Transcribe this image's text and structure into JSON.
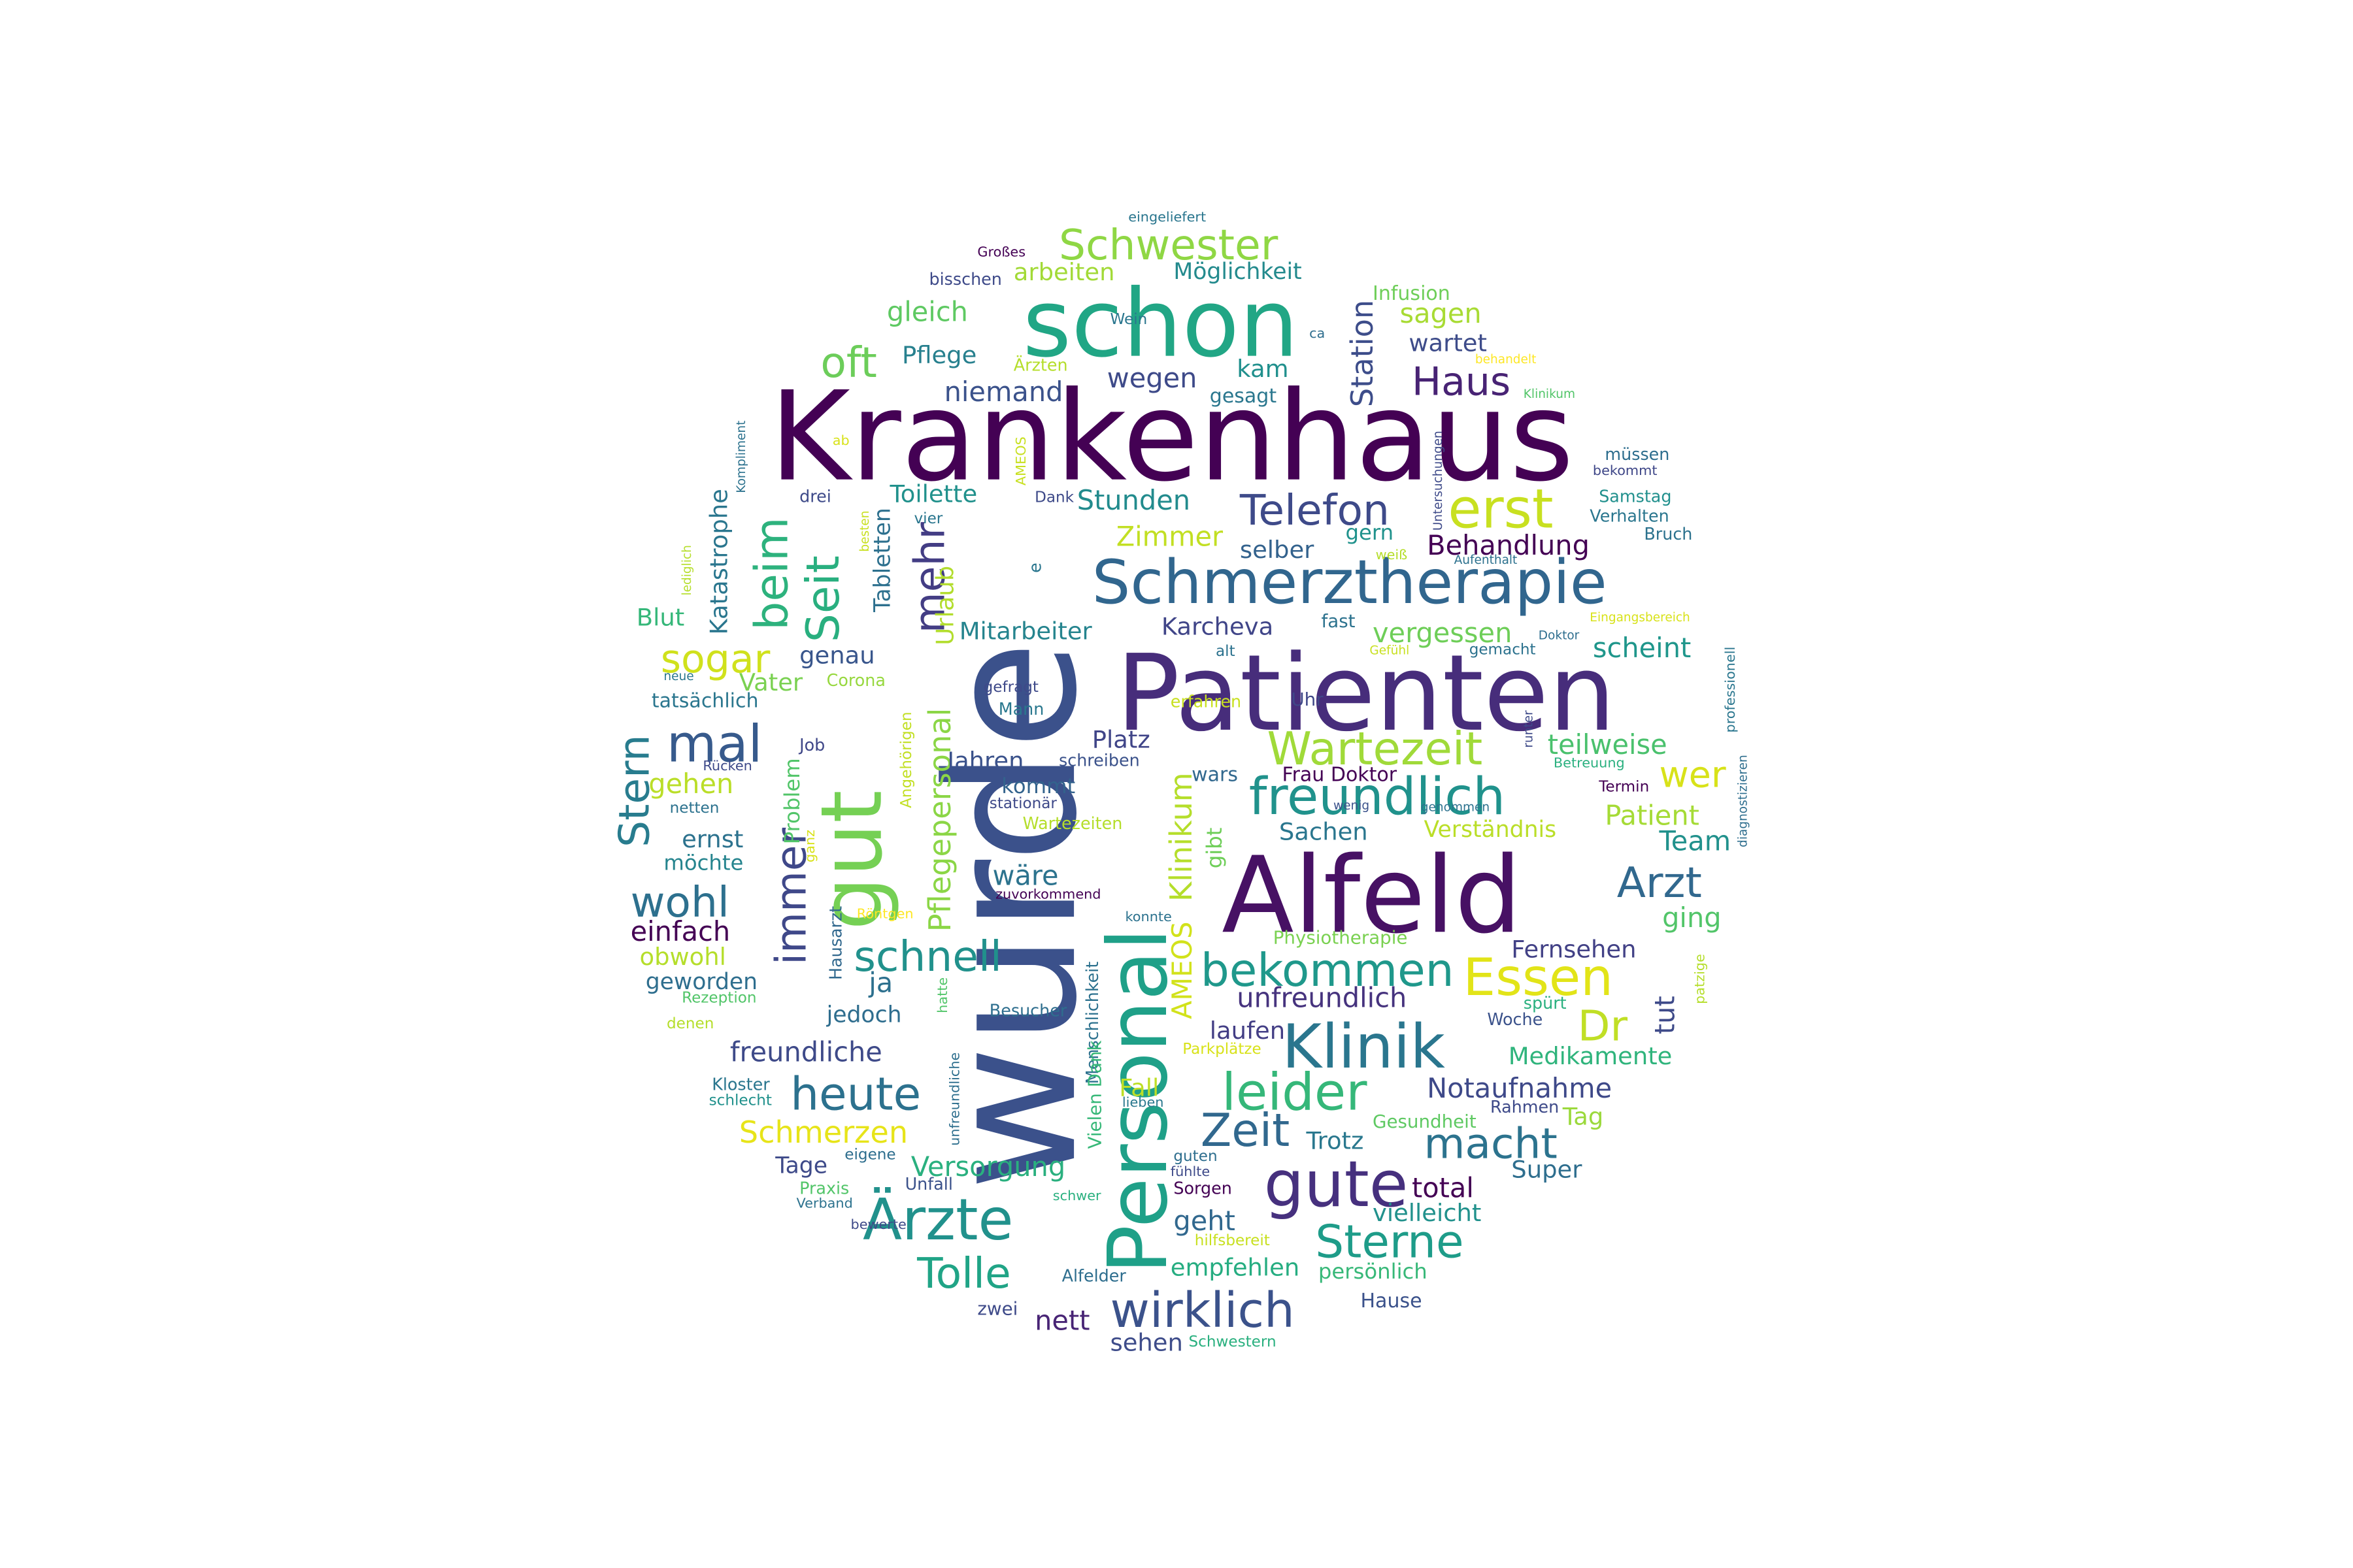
{
  "words": [
    {
      "text": "Krankenhaus",
      "color": "#440154"
    },
    {
      "text": "wurde",
      "color": "#3b518b"
    },
    {
      "text": "Patienten",
      "color": "#472d7b"
    },
    {
      "text": "Alfeld",
      "color": "#471164"
    },
    {
      "text": "schon",
      "color": "#21a685"
    },
    {
      "text": "Personal",
      "color": "#1fa088"
    },
    {
      "text": "gut",
      "color": "#75d054"
    },
    {
      "text": "Schmerztherapie",
      "color": "#31668e"
    },
    {
      "text": "Klinik",
      "color": "#2a768e"
    },
    {
      "text": "gute",
      "color": "#46307e"
    },
    {
      "text": "Ärzte",
      "color": "#21918c"
    },
    {
      "text": "Telefon",
      "color": "#3e4a89"
    },
    {
      "text": "erst",
      "color": "#c8e020"
    },
    {
      "text": "Schwester",
      "color": "#8fd744"
    },
    {
      "text": "Essen",
      "color": "#e2e418"
    },
    {
      "text": "freundlich",
      "color": "#20928c"
    },
    {
      "text": "bekommen",
      "color": "#1f988b"
    },
    {
      "text": "leider",
      "color": "#35b779"
    },
    {
      "text": "mal",
      "color": "#375a8c"
    },
    {
      "text": "Wartezeit",
      "color": "#a0da39"
    },
    {
      "text": "Haus",
      "color": "#482374"
    },
    {
      "text": "wirklich",
      "color": "#3b528b"
    },
    {
      "text": "Sterne",
      "color": "#1e9c89"
    },
    {
      "text": "heute",
      "color": "#2c718e"
    },
    {
      "text": "schnell",
      "color": "#21918c"
    },
    {
      "text": "immer",
      "color": "#3f4889"
    },
    {
      "text": "Seit",
      "color": "#29af7f"
    },
    {
      "text": "beim",
      "color": "#2db27d"
    },
    {
      "text": "mehr",
      "color": "#433d84"
    },
    {
      "text": "oft",
      "color": "#6ccd5a"
    },
    {
      "text": "Stern",
      "color": "#287c8e"
    },
    {
      "text": "sogar",
      "color": "#d0e11c"
    },
    {
      "text": "wohl",
      "color": "#2d708e"
    },
    {
      "text": "Zeit",
      "color": "#31688e"
    },
    {
      "text": "macht",
      "color": "#2c738e"
    },
    {
      "text": "Arzt",
      "color": "#31688e"
    },
    {
      "text": "Dr",
      "color": "#c0df25"
    },
    {
      "text": "Tolle",
      "color": "#20a486"
    },
    {
      "text": "Station",
      "color": "#3d4d8a"
    },
    {
      "text": "Pflegepersonal",
      "color": "#8bd646"
    },
    {
      "text": "Klinikum",
      "color": "#b5de2b"
    },
    {
      "text": "AMEOS",
      "color": "#d2e21b"
    },
    {
      "text": "Stunden",
      "color": "#228b8d"
    },
    {
      "text": "Behandlung",
      "color": "#440154"
    },
    {
      "text": "Notaufnahme",
      "color": "#3e4989"
    },
    {
      "text": "Schmerzen",
      "color": "#e7e419"
    },
    {
      "text": "Versorgung",
      "color": "#2ab07f"
    },
    {
      "text": "Mitarbeiter",
      "color": "#25848e"
    },
    {
      "text": "Karcheva",
      "color": "#404588"
    },
    {
      "text": "vergessen",
      "color": "#6ece58"
    },
    {
      "text": "scheint",
      "color": "#1f968b"
    },
    {
      "text": "teilweise",
      "color": "#4ac16d"
    },
    {
      "text": "wer",
      "color": "#d8e219"
    },
    {
      "text": "Patient",
      "color": "#a5db36"
    },
    {
      "text": "Team",
      "color": "#21918c"
    },
    {
      "text": "ging",
      "color": "#52c569"
    },
    {
      "text": "Fernsehen",
      "color": "#424186"
    },
    {
      "text": "tut",
      "color": "#3e4a89"
    },
    {
      "text": "Medikamente",
      "color": "#2fb47c"
    },
    {
      "text": "Tag",
      "color": "#9bd93c"
    },
    {
      "text": "Super",
      "color": "#2e6e8e"
    },
    {
      "text": "total",
      "color": "#440154"
    },
    {
      "text": "vielleicht",
      "color": "#21918c"
    },
    {
      "text": "persönlich",
      "color": "#37b878"
    },
    {
      "text": "empfehlen",
      "color": "#26ad81"
    },
    {
      "text": "geht",
      "color": "#31688e"
    },
    {
      "text": "nett",
      "color": "#482475"
    },
    {
      "text": "sehen",
      "color": "#3e4c8a"
    },
    {
      "text": "Hause",
      "color": "#3b528b"
    },
    {
      "text": "Trotz",
      "color": "#2a788e"
    },
    {
      "text": "Gesundheit",
      "color": "#5ec962"
    },
    {
      "text": "unfreundlich",
      "color": "#46337e"
    },
    {
      "text": "laufen",
      "color": "#433e85"
    },
    {
      "text": "Fall",
      "color": "#bddf26"
    },
    {
      "text": "Sachen",
      "color": "#2a768e"
    },
    {
      "text": "Verständnis",
      "color": "#bade28"
    },
    {
      "text": "gibt",
      "color": "#6ece58"
    },
    {
      "text": "wars",
      "color": "#31688e"
    },
    {
      "text": "Frau Doktor",
      "color": "#440154"
    },
    {
      "text": "Uhr",
      "color": "#3f4788"
    },
    {
      "text": "fast",
      "color": "#2c728e"
    },
    {
      "text": "gern",
      "color": "#20928c"
    },
    {
      "text": "selber",
      "color": "#33628d"
    },
    {
      "text": "Zimmer",
      "color": "#c2df23"
    },
    {
      "text": "Toilette",
      "color": "#21918c"
    },
    {
      "text": "kam",
      "color": "#21908d"
    },
    {
      "text": "wegen",
      "color": "#3e4a89"
    },
    {
      "text": "gesagt",
      "color": "#2a778e"
    },
    {
      "text": "niemand",
      "color": "#3b528b"
    },
    {
      "text": "Pflege",
      "color": "#27808e"
    },
    {
      "text": "gleich",
      "color": "#5ec962"
    },
    {
      "text": "arbeiten",
      "color": "#a2da37"
    },
    {
      "text": "Möglichkeit",
      "color": "#238a8d"
    },
    {
      "text": "sagen",
      "color": "#a8db34"
    },
    {
      "text": "wartet",
      "color": "#3e4c8a"
    },
    {
      "text": "Infusion",
      "color": "#6ece58"
    },
    {
      "text": "Urlaub",
      "color": "#b2dd2d"
    },
    {
      "text": "Tabletten",
      "color": "#2d708e"
    },
    {
      "text": "Katastrophe",
      "color": "#2a768e"
    },
    {
      "text": "Blut",
      "color": "#35b779"
    },
    {
      "text": "genau",
      "color": "#39568c"
    },
    {
      "text": "Vater",
      "color": "#7ad151"
    },
    {
      "text": "Jahren",
      "color": "#3b528b"
    },
    {
      "text": "Platz",
      "color": "#404588"
    },
    {
      "text": "kommt",
      "color": "#33638d"
    },
    {
      "text": "wäre",
      "color": "#2c738e"
    },
    {
      "text": "Problem",
      "color": "#52c569"
    },
    {
      "text": "ernst",
      "color": "#2c728e"
    },
    {
      "text": "gehen",
      "color": "#bade28"
    },
    {
      "text": "möchte",
      "color": "#25848e"
    },
    {
      "text": "einfach",
      "color": "#440154"
    },
    {
      "text": "obwohl",
      "color": "#b5de2b"
    },
    {
      "text": "geworden",
      "color": "#2e6e8e"
    },
    {
      "text": "ja",
      "color": "#2d708e"
    },
    {
      "text": "jedoch",
      "color": "#2e6d8e"
    },
    {
      "text": "freundliche",
      "color": "#3e4a89"
    },
    {
      "text": "Tage",
      "color": "#3e4a89"
    },
    {
      "text": "Hausarzt",
      "color": "#31688e"
    },
    {
      "text": "Menschlichkeit",
      "color": "#2c718e"
    },
    {
      "text": "Vielen Dank",
      "color": "#37b878"
    },
    {
      "text": "unfreundliche",
      "color": "#2e6f8e"
    },
    {
      "text": "tatsächlich",
      "color": "#2a768e"
    },
    {
      "text": "Job",
      "color": "#3f4788"
    },
    {
      "text": "Corona",
      "color": "#97d83f"
    },
    {
      "text": "Angehörigen",
      "color": "#c2df23"
    },
    {
      "text": "Mann",
      "color": "#2a788e"
    },
    {
      "text": "gefragt",
      "color": "#3e4989"
    },
    {
      "text": "schreiben",
      "color": "#3b528b"
    },
    {
      "text": "erfahren",
      "color": "#c8e020"
    },
    {
      "text": "stationär",
      "color": "#3e4989"
    },
    {
      "text": "Wartezeiten",
      "color": "#b5de2b"
    },
    {
      "text": "zuvorkommend",
      "color": "#440154"
    },
    {
      "text": "konnte",
      "color": "#2c728e"
    },
    {
      "text": "Physiotherapie",
      "color": "#7ad151"
    },
    {
      "text": "Besucher",
      "color": "#2e6e8e"
    },
    {
      "text": "hatte",
      "color": "#52c569"
    },
    {
      "text": "Parkplätze",
      "color": "#d8e219"
    },
    {
      "text": "Woche",
      "color": "#3b528b"
    },
    {
      "text": "spürt",
      "color": "#2ab07f"
    },
    {
      "text": "Rahmen",
      "color": "#3e4a89"
    },
    {
      "text": "Bruch",
      "color": "#2c728e"
    },
    {
      "text": "Verhalten",
      "color": "#2a768e"
    },
    {
      "text": "Samstag",
      "color": "#21908d"
    },
    {
      "text": "müssen",
      "color": "#2e6e8e"
    },
    {
      "text": "bekommt",
      "color": "#3f4788"
    },
    {
      "text": "Klinikum",
      "color": "#52c569"
    },
    {
      "text": "behandelt",
      "color": "#fde725"
    },
    {
      "text": "Untersuchungen",
      "color": "#3e4a89"
    },
    {
      "text": "Aufenthalt",
      "color": "#2c718e"
    },
    {
      "text": "weiß",
      "color": "#b5de2b"
    },
    {
      "text": "Eingangsbereich",
      "color": "#d8e219"
    },
    {
      "text": "Doktor",
      "color": "#2e6e8e"
    },
    {
      "text": "gemacht",
      "color": "#2c728e"
    },
    {
      "text": "Gefühl",
      "color": "#c8e020"
    },
    {
      "text": "alt",
      "color": "#2c728e"
    },
    {
      "text": "professionell",
      "color": "#2a768e"
    },
    {
      "text": "diagnostizieren",
      "color": "#2e6e8e"
    },
    {
      "text": "Betreuung",
      "color": "#2ab07f"
    },
    {
      "text": "Termin",
      "color": "#440154"
    },
    {
      "text": "runter",
      "color": "#3e4a89"
    },
    {
      "text": "wenig",
      "color": "#3b528b"
    },
    {
      "text": "genommen",
      "color": "#2c728e"
    },
    {
      "text": "patzige",
      "color": "#b5de2b"
    },
    {
      "text": "Rezeption",
      "color": "#52c569"
    },
    {
      "text": "denen",
      "color": "#b5de2b"
    },
    {
      "text": "Kloster",
      "color": "#2a768e"
    },
    {
      "text": "schlecht",
      "color": "#21918c"
    },
    {
      "text": "eigene",
      "color": "#2e6e8e"
    },
    {
      "text": "Unfall",
      "color": "#3b528b"
    },
    {
      "text": "Praxis",
      "color": "#52c569"
    },
    {
      "text": "Verband",
      "color": "#2c728e"
    },
    {
      "text": "schwer",
      "color": "#2ab07f"
    },
    {
      "text": "Alfelder",
      "color": "#2e6e8e"
    },
    {
      "text": "zwei",
      "color": "#3e4a89"
    },
    {
      "text": "lieben",
      "color": "#2a788e"
    },
    {
      "text": "guten",
      "color": "#2e6e8e"
    },
    {
      "text": "fühlte",
      "color": "#3e4a89"
    },
    {
      "text": "Sorgen",
      "color": "#440154"
    },
    {
      "text": "hilfsbereit",
      "color": "#c8e020"
    },
    {
      "text": "Schwestern",
      "color": "#2ab07f"
    },
    {
      "text": "Großes",
      "color": "#440154"
    },
    {
      "text": "bisschen",
      "color": "#3e4a89"
    },
    {
      "text": "eingeliefert",
      "color": "#2a768e"
    },
    {
      "text": "Wein",
      "color": "#2a768e"
    },
    {
      "text": "ca",
      "color": "#2e6e8e"
    },
    {
      "text": "Ärzten",
      "color": "#b5de2b"
    },
    {
      "text": "AMEOS",
      "color": "#c8e020"
    },
    {
      "text": "Dank",
      "color": "#3e4a89"
    },
    {
      "text": "ab",
      "color": "#d8e219"
    },
    {
      "text": "Kompliment",
      "color": "#2c728e"
    },
    {
      "text": "drei",
      "color": "#3e4a89"
    },
    {
      "text": "besten",
      "color": "#c8e020"
    },
    {
      "text": "vier",
      "color": "#2a768e"
    },
    {
      "text": "lediglich",
      "color": "#b5de2b"
    },
    {
      "text": "neue",
      "color": "#2a768e"
    },
    {
      "text": "Rücken",
      "color": "#3e4a89"
    },
    {
      "text": "netten",
      "color": "#2c728e"
    },
    {
      "text": "ganz",
      "color": "#d8e219"
    },
    {
      "text": "bewerte",
      "color": "#3e4a89"
    },
    {
      "text": "Röntgen",
      "color": "#fde725"
    },
    {
      "text": "e",
      "color": "#2a768e"
    }
  ]
}
